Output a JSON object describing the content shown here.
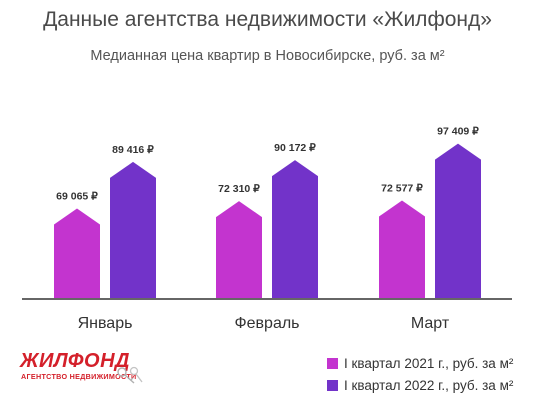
{
  "header": {
    "title": "Данные агентства недвижимости «Жилфонд»",
    "subtitle": "Медианная цена квартир в Новосибирске, руб. за м²"
  },
  "logo": {
    "word": "ЖИЛФОНД",
    "tagline": "АГЕНТСТВО НЕДВИЖИМОСТИ"
  },
  "chart_data": {
    "type": "bar",
    "title": "Данные агентства недвижимости «Жилфонд»",
    "subtitle": "Медианная цена квартир в Новосибирске, руб. за м²",
    "categories": [
      "Январь",
      "Февраль",
      "Март"
    ],
    "series": [
      {
        "name": "I квартал 2021 г., руб. за м²",
        "values": [
          69065,
          72310,
          72577
        ],
        "labels": [
          "69 065 ₽",
          "72 310 ₽",
          "72 577 ₽"
        ],
        "color": "#c334cf"
      },
      {
        "name": "I квартал 2022 г., руб. за м²",
        "values": [
          89416,
          90172,
          97409
        ],
        "labels": [
          "89 416 ₽",
          "90 172 ₽",
          "97 409 ₽"
        ],
        "color": "#7233c9"
      }
    ],
    "ylim": [
      30000,
      100000
    ],
    "grid": false,
    "legend": "bottom-right",
    "bar_shape": "house"
  }
}
